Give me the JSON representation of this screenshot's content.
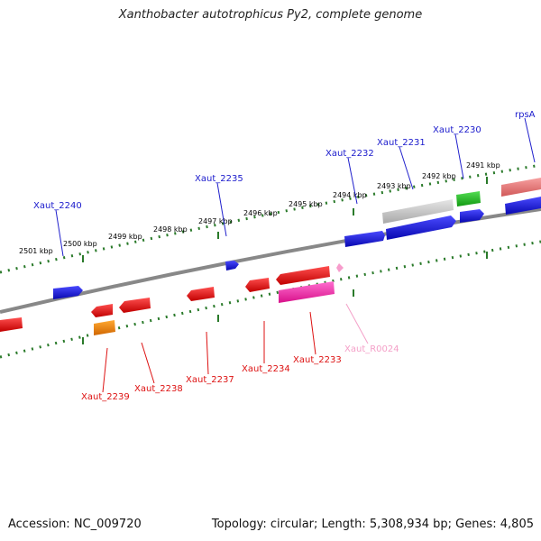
{
  "title": "Xanthobacter autotrophicus Py2, complete genome",
  "footer": {
    "accession": "Accession: NC_009720",
    "summary": "Topology: circular; Length: 5,308,934 bp; Genes: 4,805"
  },
  "colors": {
    "forward_gene": "#1010dd",
    "reverse_gene": "#ee1111",
    "rrna": "#ee2aa6",
    "trna_label": "#f4a0c8",
    "pseudogene": "#c8c8c8",
    "green_gene": "#22bb22",
    "orange_gene": "#ee8800",
    "salmon_gene": "#ee8080",
    "backbone": "#888888",
    "ticks": "#2a7a2a"
  },
  "scale_labels": [
    "2501 kbp",
    "2500 kbp",
    "2499 kbp",
    "2498 kbp",
    "2497 kbp",
    "2496 kbp",
    "2495 kbp",
    "2494 kbp",
    "2493 kbp",
    "2492 kbp",
    "2491 kbp"
  ],
  "forward_labels": [
    "Xaut_2240",
    "Xaut_2235",
    "Xaut_2232",
    "Xaut_2231",
    "Xaut_2230",
    "rpsA"
  ],
  "reverse_labels": [
    "Xaut_2239",
    "Xaut_2238",
    "Xaut_2237",
    "Xaut_2234",
    "Xaut_2233",
    "Xaut_R0024"
  ]
}
